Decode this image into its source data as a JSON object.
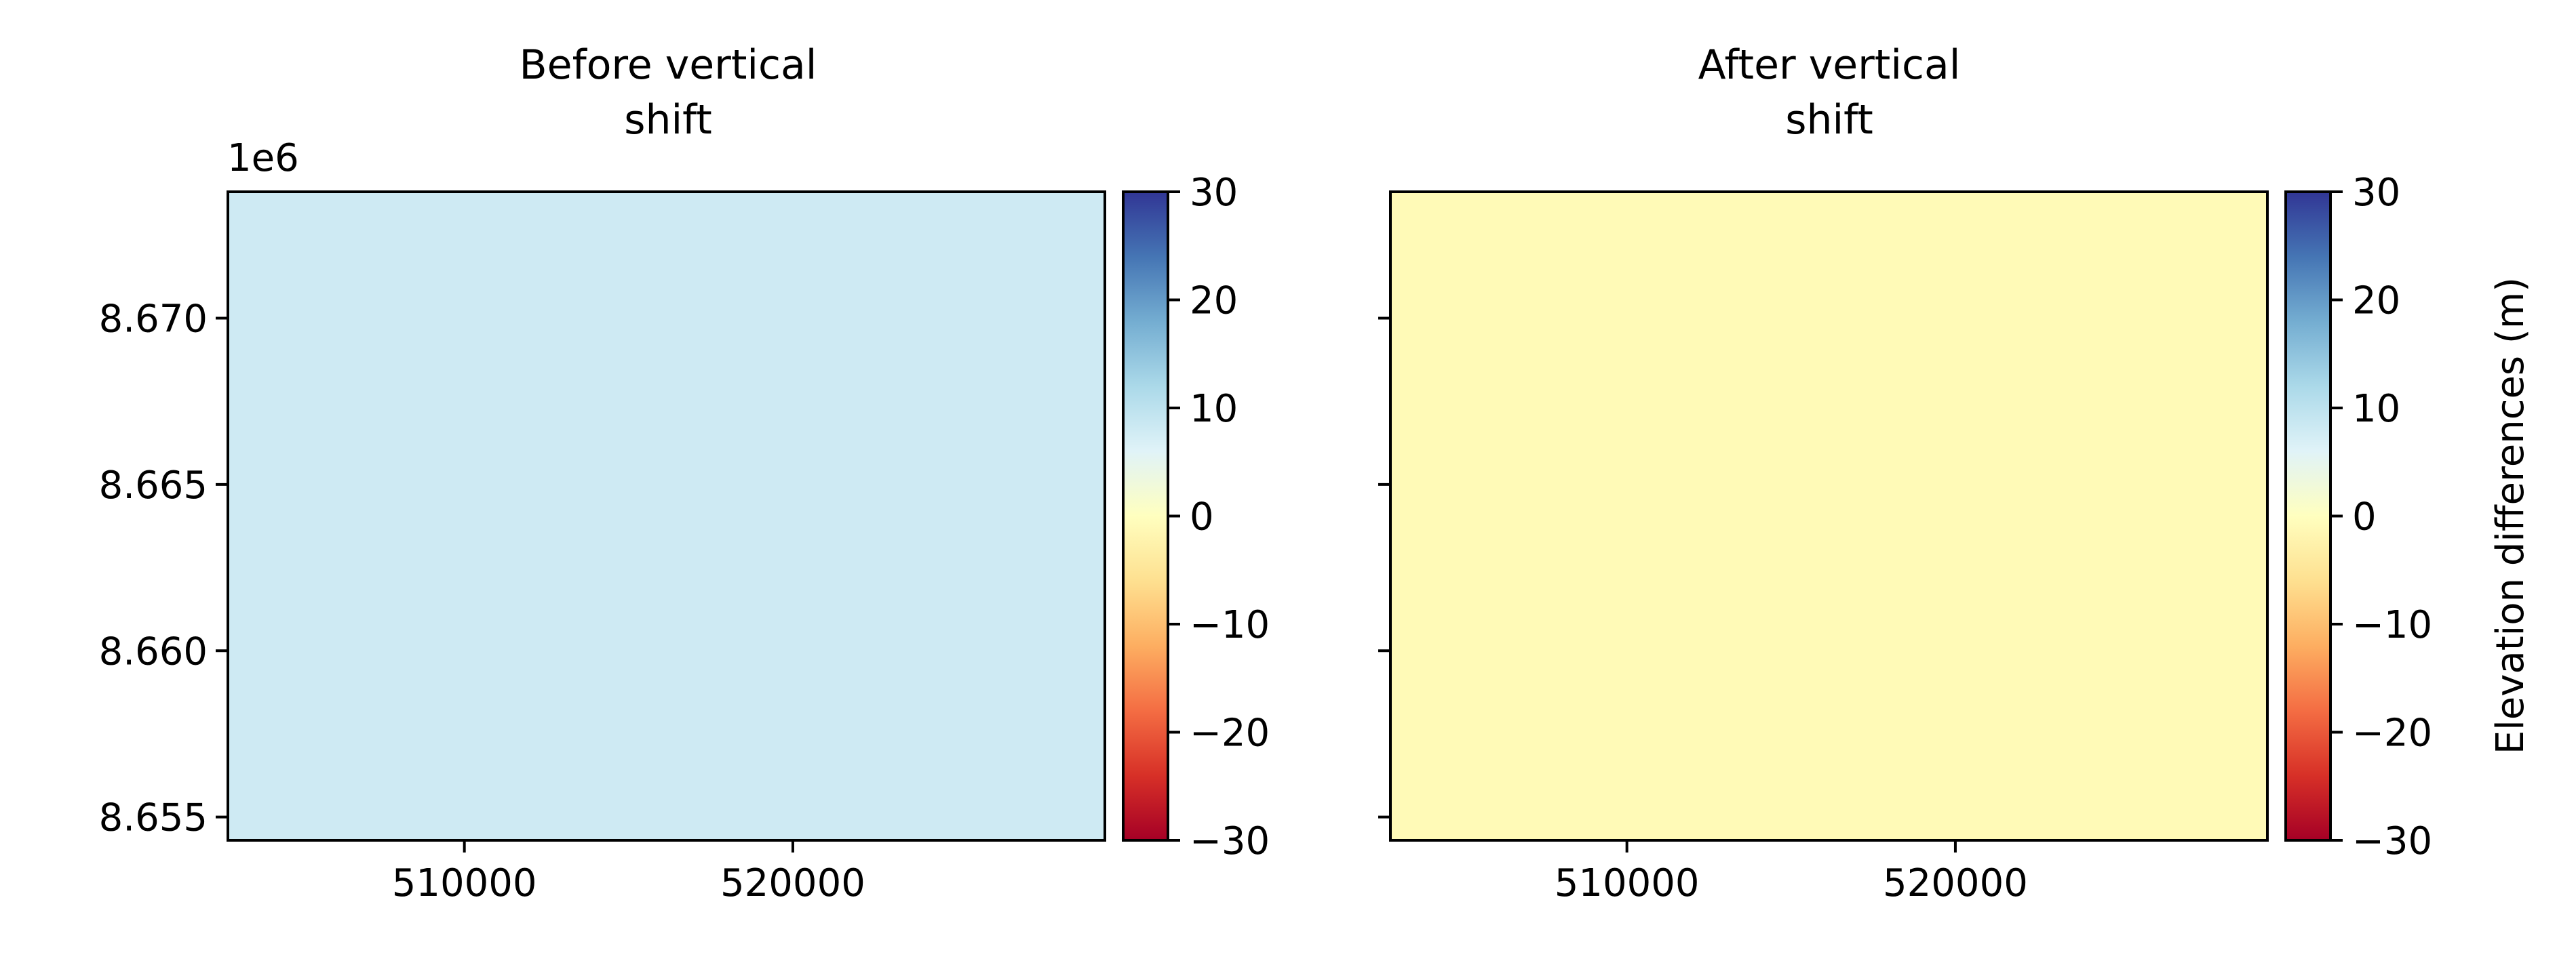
{
  "chart_data": [
    {
      "type": "heatmap",
      "title_lines": [
        "Before vertical",
        "shift"
      ],
      "x_ticks": [
        510000,
        520000
      ],
      "x_tick_labels": [
        "510000",
        "520000"
      ],
      "xlim": [
        502800,
        529500
      ],
      "y_ticks": [
        8.655,
        8.66,
        8.665,
        8.67
      ],
      "y_tick_labels": [
        "8.655",
        "8.660",
        "8.665",
        "8.670"
      ],
      "ylim": [
        8.6543,
        8.6738
      ],
      "y_offset_label": "1e6",
      "show_y_tick_labels": true,
      "field_value": 8,
      "colorbar": {
        "cmap": "RdYlBu",
        "vmin": -30,
        "vmax": 30,
        "ticks": [
          30,
          20,
          10,
          0,
          -10,
          -20,
          -30
        ],
        "tick_labels": [
          "30",
          "20",
          "10",
          "0",
          "−10",
          "−20",
          "−30"
        ],
        "label": ""
      }
    },
    {
      "type": "heatmap",
      "title_lines": [
        "After vertical",
        "shift"
      ],
      "x_ticks": [
        510000,
        520000
      ],
      "x_tick_labels": [
        "510000",
        "520000"
      ],
      "xlim": [
        502800,
        529500
      ],
      "y_ticks": [
        8.655,
        8.66,
        8.665,
        8.67
      ],
      "y_tick_labels": [
        "",
        "",
        "",
        ""
      ],
      "ylim": [
        8.6543,
        8.6738
      ],
      "y_offset_label": "",
      "show_y_tick_labels": false,
      "field_value": -1,
      "colorbar": {
        "cmap": "RdYlBu",
        "vmin": -30,
        "vmax": 30,
        "ticks": [
          30,
          20,
          10,
          0,
          -10,
          -20,
          -30
        ],
        "tick_labels": [
          "30",
          "20",
          "10",
          "0",
          "−10",
          "−20",
          "−30"
        ],
        "label": "Elevation differences (m)"
      }
    }
  ],
  "colormap_stops": [
    "#a50026",
    "#d73027",
    "#f46d43",
    "#fdae61",
    "#fee090",
    "#ffffbf",
    "#e0f3f8",
    "#abd9e9",
    "#74add1",
    "#4575b4",
    "#313695"
  ]
}
